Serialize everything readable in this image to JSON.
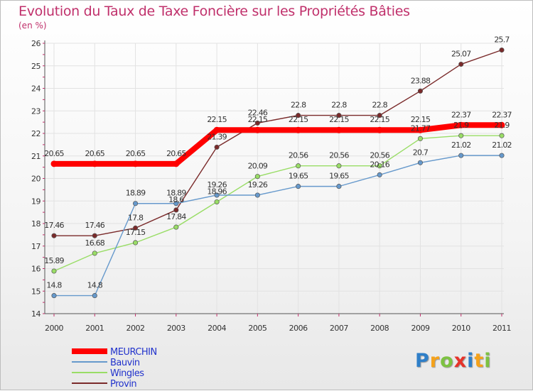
{
  "logo": {
    "p": "P",
    "r": "r",
    "o": "o",
    "x": "x",
    "i": "i",
    "t": "t",
    "i2": "i"
  },
  "chart_data": {
    "type": "line",
    "title": "Evolution du Taux de Taxe Foncière sur les Propriétés Bâties",
    "ylabel": "(en %)",
    "xlabel": "",
    "ylim": [
      14,
      26
    ],
    "yticks": [
      14,
      15,
      16,
      17,
      18,
      19,
      20,
      21,
      22,
      23,
      24,
      25,
      26
    ],
    "categories": [
      "2000",
      "2001",
      "2002",
      "2003",
      "2004",
      "2005",
      "2006",
      "2007",
      "2008",
      "2009",
      "2010",
      "2011"
    ],
    "series": [
      {
        "name": "MEURCHIN",
        "color": "#ff0000",
        "labels": [
          "20.65",
          "20.65",
          "20.65",
          "20.65",
          "22.15",
          "22.15",
          "22.15",
          "22.15",
          "22.15",
          "22.15",
          "22.37",
          "22.37"
        ],
        "values": [
          20.65,
          20.65,
          20.65,
          20.65,
          22.15,
          22.15,
          22.15,
          22.15,
          22.15,
          22.15,
          22.37,
          22.37
        ]
      },
      {
        "name": "Bauvin",
        "color": "#6699cc",
        "labels": [
          "14.8",
          "14.8",
          "18.89",
          "18.89",
          "19.26",
          "19.26",
          "19.65",
          "19.65",
          "20.16",
          "20.7",
          "21.02",
          "21.02"
        ],
        "values": [
          14.8,
          14.8,
          18.89,
          18.89,
          19.26,
          19.26,
          19.65,
          19.65,
          20.16,
          20.7,
          21.02,
          21.02
        ]
      },
      {
        "name": "Wingles",
        "color": "#99dd66",
        "labels": [
          "15.89",
          "16.68",
          "17.15",
          "17.84",
          "18.96",
          "20.09",
          "20.56",
          "20.56",
          "20.56",
          "21.77",
          "21.9",
          "21.9"
        ],
        "values": [
          15.89,
          16.68,
          17.15,
          17.84,
          18.96,
          20.09,
          20.56,
          20.56,
          20.56,
          21.77,
          21.9,
          21.9
        ]
      },
      {
        "name": "Provin",
        "color": "#7a2a2a",
        "labels": [
          "17.46",
          "17.46",
          "17.8",
          "18.6",
          "21.39",
          "22.46",
          "22.8",
          "22.8",
          "22.8",
          "23.88",
          "25.07",
          "25.7"
        ],
        "values": [
          17.46,
          17.46,
          17.8,
          18.6,
          21.39,
          22.46,
          22.8,
          22.8,
          22.8,
          23.88,
          25.07,
          25.7
        ]
      }
    ]
  }
}
